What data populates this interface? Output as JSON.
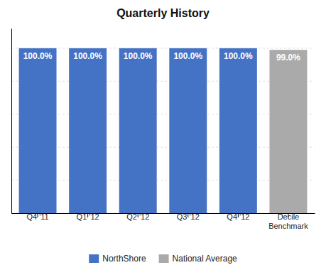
{
  "chart_data": {
    "type": "bar",
    "title": "Quarterly History",
    "categories": [
      "Q4 '11",
      "Q1 '12",
      "Q2 '12",
      "Q3 '12",
      "Q4 '12",
      "Decile\nBenchmark"
    ],
    "series": [
      {
        "name": "NorthShore",
        "color": "#4472C4",
        "values": [
          100.0,
          100.0,
          100.0,
          100.0,
          100.0,
          null
        ],
        "value_labels": [
          "100.0%",
          "100.0%",
          "100.0%",
          "100.0%",
          "100.0%",
          null
        ]
      },
      {
        "name": "National Average",
        "color": "#AAAAAA",
        "values": [
          null,
          null,
          null,
          null,
          null,
          99.0
        ],
        "value_labels": [
          null,
          null,
          null,
          null,
          null,
          "99.0%"
        ]
      }
    ],
    "ylim": [
      0,
      112
    ],
    "yticks": [
      0,
      20,
      40,
      60,
      80,
      100
    ],
    "grid": true,
    "data_labels": true,
    "tick_labels": "x",
    "legend": "bottom"
  }
}
